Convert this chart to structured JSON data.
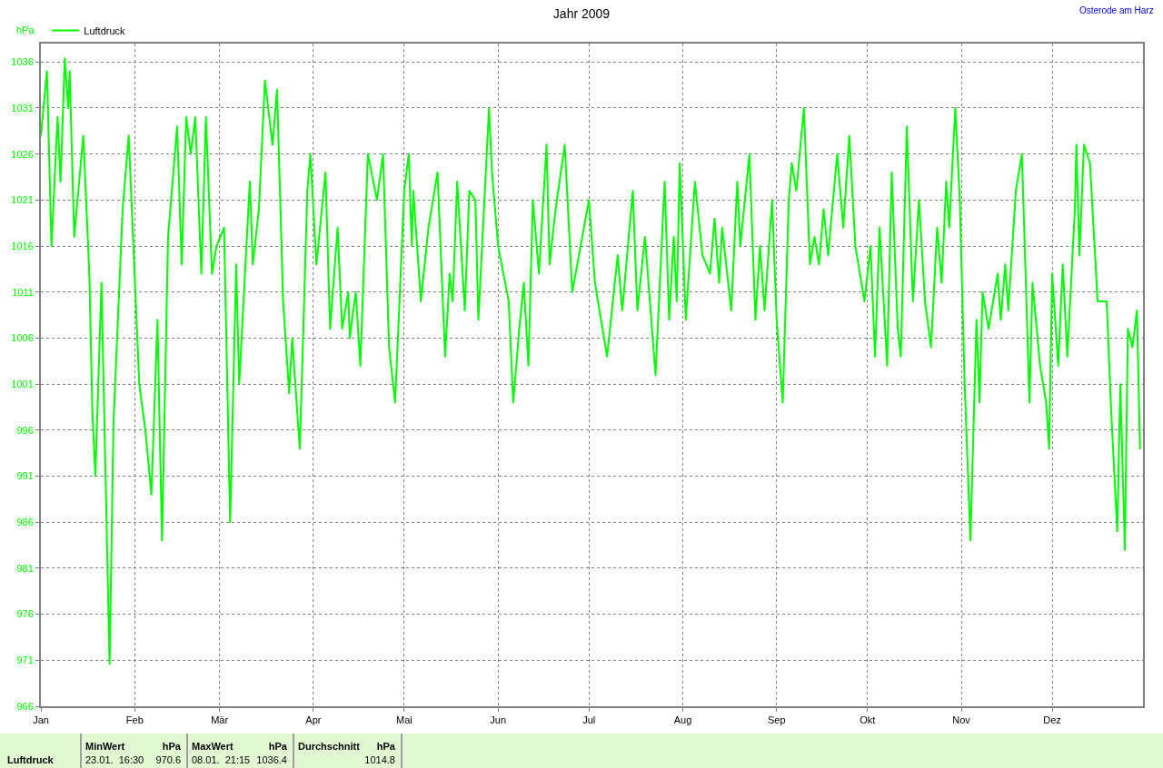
{
  "chart_data": {
    "type": "line",
    "title": "Jahr 2009",
    "ylabel": "hPa",
    "annotations": [
      "Osterode am Harz",
      "Luftdruck",
      "MinWert",
      "hPa",
      "23.01.  16:30",
      "970.6",
      "MaxWert",
      "hPa",
      "08.01.  21:15",
      "1036.4",
      "Durchschnitt",
      "hPa",
      "1014.8"
    ],
    "x": [
      "2009-01-01",
      "2009-01-03",
      "2009-01-04T12:00",
      "2009-01-06T12:00",
      "2009-01-07T12:00",
      "2009-01-08T21:15",
      "2009-01-10",
      "2009-01-10T12:00",
      "2009-01-12",
      "2009-01-15",
      "2009-01-17",
      "2009-01-18",
      "2009-01-19",
      "2009-01-21",
      "2009-01-23T16:30",
      "2009-01-25",
      "2009-01-28",
      "2009-01-30",
      "2009-02-02T12:00",
      "2009-02-04T12:00",
      "2009-02-06T12:00",
      "2009-02-08T12:00",
      "2009-02-10",
      "2009-02-12",
      "2009-02-15",
      "2009-02-16T12:00",
      "2009-02-18",
      "2009-02-19T12:00",
      "2009-02-21",
      "2009-02-23",
      "2009-02-24T12:00",
      "2009-02-26T12:00",
      "2009-02-28",
      "2009-03-02T12:00",
      "2009-03-04T12:00",
      "2009-03-06T12:00",
      "2009-03-07T12:00",
      "2009-03-11",
      "2009-03-12",
      "2009-03-14",
      "2009-03-16",
      "2009-03-18T12:00",
      "2009-03-20",
      "2009-03-22",
      "2009-03-24",
      "2009-03-25",
      "2009-03-27T12:00",
      "2009-03-28T12:00",
      "2009-03-30",
      "2009-03-31",
      "2009-04-02",
      "2009-04-05",
      "2009-04-06T12:00",
      "2009-04-09",
      "2009-04-10T12:00",
      "2009-04-12T12:00",
      "2009-04-13",
      "2009-04-15",
      "2009-04-16T12:00",
      "2009-04-19",
      "2009-04-22",
      "2009-04-24",
      "2009-04-26",
      "2009-04-28",
      "2009-05-01",
      "2009-05-02T12:00",
      "2009-05-03T12:00",
      "2009-05-04",
      "2009-05-06T12:00",
      "2009-05-09",
      "2009-05-12",
      "2009-05-14T12:00",
      "2009-05-16",
      "2009-05-17",
      "2009-05-18T12:00",
      "2009-05-21",
      "2009-05-22T12:00",
      "2009-05-24T12:00",
      "2009-05-25T12:00",
      "2009-05-29",
      "2009-05-30",
      "2009-06-01",
      "2009-06-04T12:00",
      "2009-06-06",
      "2009-06-08",
      "2009-06-09T12:00",
      "2009-06-11",
      "2009-06-12T12:00",
      "2009-06-14T12:00",
      "2009-06-17",
      "2009-06-18",
      "2009-06-20",
      "2009-06-23",
      "2009-06-25T12:00",
      "2009-07-01",
      "2009-07-03",
      "2009-07-07",
      "2009-07-10T12:00",
      "2009-07-12",
      "2009-07-15T12:00",
      "2009-07-17",
      "2009-07-19T12:00",
      "2009-07-23",
      "2009-07-26",
      "2009-07-27T12:00",
      "2009-07-29",
      "2009-07-30",
      "2009-07-31",
      "2009-08-02",
      "2009-08-05",
      "2009-08-07T12:00",
      "2009-08-10",
      "2009-08-11T12:00",
      "2009-08-13",
      "2009-08-14",
      "2009-08-17",
      "2009-08-19",
      "2009-08-20",
      "2009-08-23",
      "2009-08-25",
      "2009-08-26T12:00",
      "2009-08-28",
      "2009-08-30T12:00",
      "2009-09-01",
      "2009-09-03",
      "2009-09-05",
      "2009-09-06",
      "2009-09-07T12:00",
      "2009-09-10",
      "2009-09-12",
      "2009-09-13T12:00",
      "2009-09-15",
      "2009-09-16T12:00",
      "2009-09-18",
      "2009-09-21",
      "2009-09-23",
      "2009-09-25",
      "2009-09-27",
      "2009-09-30",
      "2009-10-02",
      "2009-10-03T12:00",
      "2009-10-05",
      "2009-10-07T12:00",
      "2009-10-09",
      "2009-10-11",
      "2009-10-12",
      "2009-10-14",
      "2009-10-16",
      "2009-10-18",
      "2009-10-20",
      "2009-10-22",
      "2009-10-24",
      "2009-10-25T12:00",
      "2009-10-27",
      "2009-10-28",
      "2009-10-30",
      "2009-10-31T12:00",
      "2009-11-02",
      "2009-11-04",
      "2009-11-06",
      "2009-11-07",
      "2009-11-08",
      "2009-11-10",
      "2009-11-13",
      "2009-11-14",
      "2009-11-15T12:00",
      "2009-11-16T12:00",
      "2009-11-19",
      "2009-11-21",
      "2009-11-22T12:00",
      "2009-11-23T12:00",
      "2009-11-24T12:00",
      "2009-11-27",
      "2009-11-29",
      "2009-11-30",
      "2009-12-01",
      "2009-12-03",
      "2009-12-04T12:00",
      "2009-12-06",
      "2009-12-08T12:00",
      "2009-12-09",
      "2009-12-10",
      "2009-12-11T12:00",
      "2009-12-13T12:00",
      "2009-12-16",
      "2009-12-19",
      "2009-12-20T12:00",
      "2009-12-22T12:00",
      "2009-12-23T12:00",
      "2009-12-25",
      "2009-12-26",
      "2009-12-27T12:00",
      "2009-12-29",
      "2009-12-30"
    ],
    "series": [
      {
        "name": "Luftdruck",
        "color": "#00ff00",
        "values": [
          1028,
          1035,
          1016,
          1030,
          1023,
          1036.4,
          1031,
          1035,
          1017,
          1028,
          1013,
          998,
          991,
          1012,
          970.6,
          997,
          1020,
          1028,
          1001,
          996,
          989,
          1008,
          984,
          1017,
          1029,
          1014,
          1030,
          1026,
          1030,
          1013,
          1030,
          1013,
          1016,
          1018,
          986,
          1014,
          1001,
          1023,
          1014,
          1020,
          1034,
          1027,
          1033,
          1010,
          1000,
          1006,
          994,
          1005,
          1022,
          1026,
          1014,
          1024,
          1007,
          1018,
          1007,
          1011,
          1006,
          1011,
          1003,
          1026,
          1021,
          1026,
          1005,
          999,
          1022,
          1026,
          1016,
          1022,
          1010,
          1018,
          1024,
          1004,
          1013,
          1010,
          1023,
          1009,
          1022,
          1021,
          1008,
          1031,
          1024,
          1016,
          1010,
          999,
          1007,
          1012,
          1003,
          1021,
          1013,
          1027,
          1014,
          1020,
          1027,
          1011,
          1021,
          1012,
          1004,
          1015,
          1009,
          1022,
          1009,
          1017,
          1002,
          1023,
          1008,
          1017,
          1010,
          1025,
          1008,
          1023,
          1015,
          1013,
          1019,
          1012,
          1018,
          1009,
          1023,
          1016,
          1026,
          1008,
          1016,
          1009,
          1021,
          1008,
          999,
          1021,
          1025,
          1022,
          1031,
          1014,
          1017,
          1014,
          1020,
          1015,
          1026,
          1018,
          1028,
          1016,
          1010,
          1016,
          1004,
          1018,
          1003,
          1024,
          1007,
          1004,
          1029,
          1010,
          1021,
          1010,
          1005,
          1018,
          1012,
          1023,
          1018,
          1031,
          1021,
          1002,
          984,
          1008,
          999,
          1011,
          1007,
          1013,
          1008,
          1014,
          1009,
          1022,
          1026,
          1010,
          999,
          1012,
          1003,
          999,
          994,
          1013,
          1003,
          1014,
          1004,
          1020,
          1027,
          1015,
          1027,
          1025,
          1010,
          1010,
          998,
          985,
          1001,
          983,
          1007,
          1005,
          1009,
          994
        ]
      }
    ],
    "xlim": [
      "2009-01-01",
      "2009-12-31"
    ],
    "xticks": [
      {
        "value": "2009-01-01",
        "label": "Jan"
      },
      {
        "value": "2009-02-01",
        "label": "Feb"
      },
      {
        "value": "2009-03-01",
        "label": "Mär"
      },
      {
        "value": "2009-04-01",
        "label": "Apr"
      },
      {
        "value": "2009-05-01",
        "label": "Mai"
      },
      {
        "value": "2009-06-01",
        "label": "Jun"
      },
      {
        "value": "2009-07-01",
        "label": "Jul"
      },
      {
        "value": "2009-08-01",
        "label": "Aug"
      },
      {
        "value": "2009-09-01",
        "label": "Sep"
      },
      {
        "value": "2009-10-01",
        "label": "Okt"
      },
      {
        "value": "2009-11-01",
        "label": "Nov"
      },
      {
        "value": "2009-12-01",
        "label": "Dez"
      }
    ],
    "ylim": [
      966,
      1038
    ],
    "yticks": [
      966,
      971,
      976,
      981,
      986,
      991,
      996,
      1001,
      1006,
      1011,
      1016,
      1021,
      1026,
      1031,
      1036
    ],
    "grid": true,
    "legend": "top left",
    "marker": "none",
    "line_style": "solid"
  }
}
